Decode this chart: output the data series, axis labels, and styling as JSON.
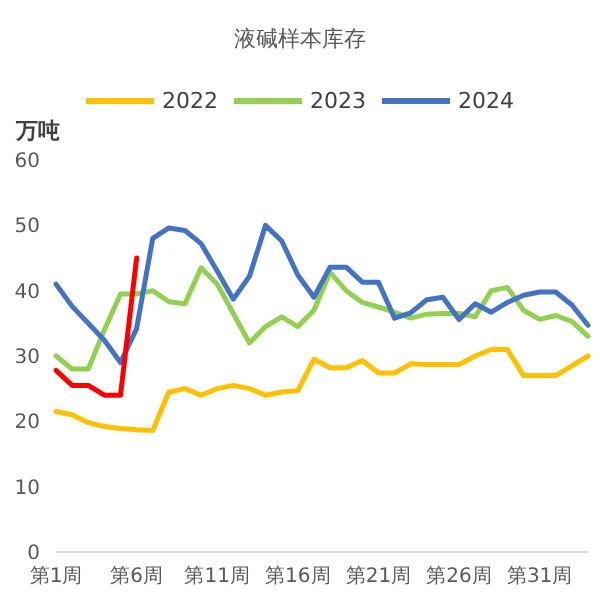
{
  "chart_data": {
    "type": "line",
    "title": "液碱样本库存",
    "ylabel": "万吨",
    "categories": [
      "第1周",
      null,
      null,
      null,
      null,
      "第6周",
      null,
      null,
      null,
      null,
      "第11周",
      null,
      null,
      null,
      null,
      "第16周",
      null,
      null,
      null,
      null,
      "第21周",
      null,
      null,
      null,
      null,
      "第26周",
      null,
      null,
      null,
      null,
      "第31周",
      null,
      null,
      null
    ],
    "series": [
      {
        "name": "2022",
        "color": "#ffc000",
        "values": [
          21.5,
          21,
          19.8,
          19.2,
          18.9,
          18.7,
          18.6,
          24.5,
          25,
          24,
          25,
          25.5,
          25,
          24,
          24.5,
          24.7,
          29.5,
          28.2,
          28.2,
          29.3,
          27.4,
          27.4,
          28.8,
          28.7,
          28.7,
          28.7,
          30,
          31,
          31,
          27,
          27,
          27,
          28.5,
          30
        ]
      },
      {
        "name": "2023",
        "color": "#92d050",
        "values": [
          30,
          28,
          28,
          34,
          39.5,
          39.5,
          40,
          38.3,
          38,
          43.5,
          41,
          36.5,
          32,
          34.5,
          36,
          34.5,
          37,
          42.8,
          40,
          38.2,
          37.5,
          36.7,
          35.8,
          36.4,
          36.5,
          36.5,
          36,
          40,
          40.5,
          37,
          35.6,
          36.2,
          35.3,
          33
        ]
      },
      {
        "name": "2024",
        "color": "#4472c4",
        "values": [
          41,
          37.6,
          35,
          32.4,
          29,
          34.2,
          48,
          49.6,
          49.2,
          47.2,
          43,
          38.7,
          42.2,
          50,
          47.6,
          42.4,
          39,
          43.6,
          43.6,
          41.3,
          41.3,
          35.8,
          36.6,
          38.6,
          39,
          35.6,
          38,
          36.7,
          38.2,
          39.3,
          39.8,
          39.8,
          37.8,
          34.7
        ]
      },
      {
        "color": "#ff0000",
        "values": [
          27.8,
          25.5,
          25.5,
          24,
          24,
          45,
          null,
          null,
          null,
          null,
          null,
          null,
          null,
          null,
          null,
          null,
          null,
          null,
          null,
          null,
          null,
          null,
          null,
          null,
          null,
          null,
          null,
          null,
          null,
          null,
          null,
          null,
          null,
          null
        ]
      }
    ],
    "ylim": [
      0,
      60
    ],
    "yticks": [
      0,
      10,
      20,
      30,
      40,
      50,
      60
    ],
    "legend": "top",
    "marker": "none",
    "line_style": "solid"
  }
}
